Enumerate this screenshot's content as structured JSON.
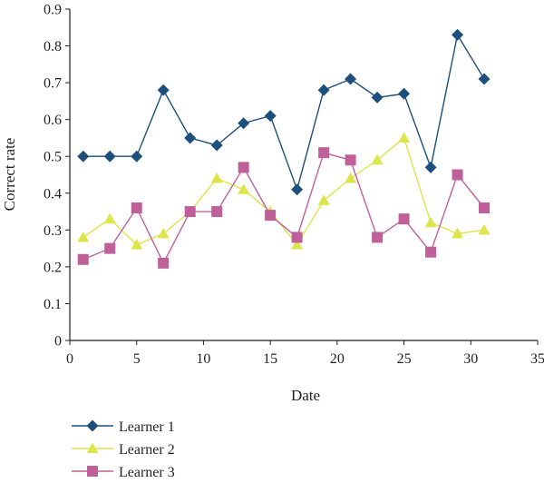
{
  "chart_data": {
    "type": "line",
    "title": "",
    "xlabel": "Date",
    "ylabel": "Correct rate",
    "xlim": [
      0,
      35
    ],
    "ylim": [
      0,
      0.9
    ],
    "xticks": [
      0,
      5,
      10,
      15,
      20,
      25,
      30,
      35
    ],
    "yticks": [
      0,
      0.1,
      0.2,
      0.3,
      0.4,
      0.5,
      0.6,
      0.7,
      0.8,
      0.9
    ],
    "grid": false,
    "legend_position": "bottom-left",
    "x": [
      1,
      3,
      5,
      7,
      9,
      11,
      13,
      15,
      17,
      19,
      21,
      23,
      25,
      27,
      29,
      31
    ],
    "series": [
      {
        "name": "Learner 1",
        "color": "#1d4f7c",
        "marker": "diamond",
        "values": [
          0.5,
          0.5,
          0.5,
          0.68,
          0.55,
          0.53,
          0.59,
          0.61,
          0.41,
          0.68,
          0.71,
          0.66,
          0.67,
          0.47,
          0.83,
          0.71
        ]
      },
      {
        "name": "Learner 2",
        "color": "#dde54a",
        "marker": "triangle",
        "values": [
          0.28,
          0.33,
          0.26,
          0.29,
          0.35,
          0.44,
          0.41,
          0.35,
          0.26,
          0.38,
          0.44,
          0.49,
          0.55,
          0.32,
          0.29,
          0.3
        ]
      },
      {
        "name": "Learner 3",
        "color": "#c0609a",
        "marker": "square",
        "values": [
          0.22,
          0.25,
          0.36,
          0.21,
          0.35,
          0.35,
          0.47,
          0.34,
          0.28,
          0.51,
          0.49,
          0.28,
          0.33,
          0.24,
          0.45,
          0.36
        ]
      }
    ]
  }
}
